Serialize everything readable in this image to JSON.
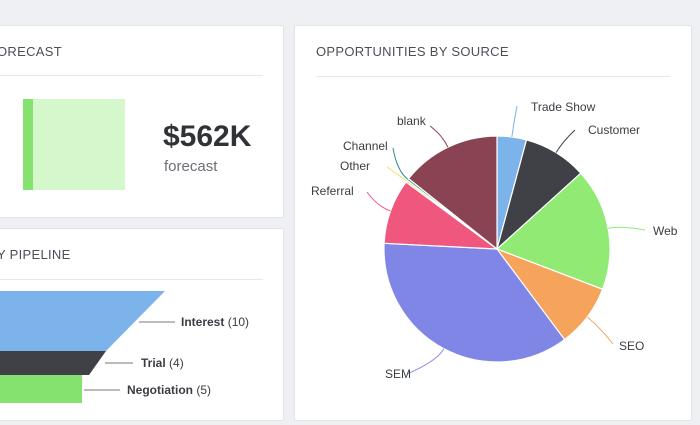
{
  "forecast": {
    "title": "ORECAST",
    "amount": "$562K",
    "subtitle": "forecast",
    "fill_fraction": 0.1,
    "colors": {
      "fill": "#86e26f",
      "bg": "#d4f7cc"
    }
  },
  "pipeline": {
    "title": "Y PIPELINE",
    "stages": [
      {
        "label": "Interest",
        "count": "(10)",
        "color": "#7bb3ea"
      },
      {
        "label": "Trial",
        "count": "(4)",
        "color": "#3f4147"
      },
      {
        "label": "Negotiation",
        "count": "(5)",
        "color": "#86e26f"
      }
    ]
  },
  "sources": {
    "title": "OPPORTUNITIES BY SOURCE"
  },
  "chart_data": {
    "type": "pie",
    "title": "OPPORTUNITIES BY SOURCE",
    "slices": [
      {
        "label": "Trade Show",
        "value": 4.2,
        "color": "#7bb3ea"
      },
      {
        "label": "Customer",
        "value": 9.1,
        "color": "#3f4147"
      },
      {
        "label": "Web",
        "value": 17.5,
        "color": "#90ea74"
      },
      {
        "label": "SEO",
        "value": 9.0,
        "color": "#f6a35c"
      },
      {
        "label": "SEM",
        "value": 36.0,
        "color": "#8086e6"
      },
      {
        "label": "Referral",
        "value": 9.3,
        "color": "#f0577f"
      },
      {
        "label": "Other",
        "value": 0.3,
        "color": "#e8e365"
      },
      {
        "label": "Channel",
        "value": 0.3,
        "color": "#2a8f8a"
      },
      {
        "label": "blank",
        "value": 14.3,
        "color": "#8a4352"
      }
    ]
  }
}
